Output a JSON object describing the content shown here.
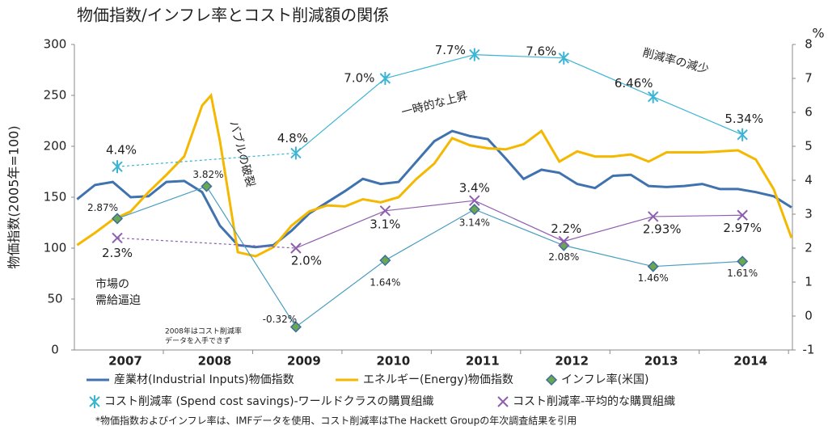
{
  "chart_data": {
    "type": "line",
    "title": "物価指数/インフレ率とコスト削減額の関係",
    "ylabel": "物価指数(2005年=100)",
    "y2label": "%",
    "xlim": [
      2006.52,
      2014.56
    ],
    "xticks": [
      2007,
      2008,
      2009,
      2010,
      2011,
      2012,
      2013,
      2014
    ],
    "ylim": [
      0,
      300
    ],
    "yticks": [
      0,
      50,
      100,
      150,
      200,
      250,
      300
    ],
    "y2lim": [
      -1,
      8
    ],
    "y2ticks": [
      -1,
      0,
      1,
      2,
      3,
      4,
      5,
      6,
      7,
      8
    ],
    "series": [
      {
        "name": "産業材(Industrial Inputs)物価指数",
        "color": "#3f72af",
        "marker": "none",
        "x": [
          2006.55,
          2006.75,
          2006.95,
          2007.15,
          2007.35,
          2007.55,
          2007.75,
          2007.95,
          2008.15,
          2008.35,
          2008.55,
          2008.75,
          2008.95,
          2009.15,
          2009.35,
          2009.55,
          2009.75,
          2009.95,
          2010.15,
          2010.35,
          2010.55,
          2010.75,
          2010.95,
          2011.15,
          2011.35,
          2011.55,
          2011.75,
          2011.95,
          2012.15,
          2012.35,
          2012.55,
          2012.75,
          2012.95,
          2013.15,
          2013.35,
          2013.55,
          2013.75,
          2013.95,
          2014.15,
          2014.35,
          2014.55
        ],
        "values": [
          148,
          162,
          165,
          150,
          151,
          165,
          166,
          155,
          122,
          103,
          101,
          103,
          117,
          134,
          145,
          156,
          168,
          163,
          165,
          185,
          205,
          215,
          210,
          207,
          188,
          168,
          177,
          174,
          163,
          159,
          171,
          172,
          161,
          160,
          161,
          163,
          158,
          158,
          155,
          151,
          140
        ]
      },
      {
        "name": "エネルギー(Energy)物価指数",
        "color": "#f5b800",
        "marker": "none",
        "x": [
          2006.55,
          2006.75,
          2006.95,
          2007.15,
          2007.35,
          2007.55,
          2007.75,
          2007.95,
          2008.05,
          2008.15,
          2008.35,
          2008.55,
          2008.75,
          2008.95,
          2009.15,
          2009.35,
          2009.55,
          2009.75,
          2009.95,
          2010.15,
          2010.35,
          2010.55,
          2010.75,
          2010.95,
          2011.15,
          2011.35,
          2011.55,
          2011.75,
          2011.95,
          2012.15,
          2012.35,
          2012.55,
          2012.75,
          2012.95,
          2013.15,
          2013.35,
          2013.55,
          2013.75,
          2013.95,
          2014.15,
          2014.35,
          2014.55
        ],
        "values": [
          103,
          115,
          128,
          136,
          155,
          172,
          190,
          240,
          250,
          205,
          96,
          92,
          101,
          122,
          136,
          142,
          141,
          148,
          145,
          150,
          168,
          183,
          208,
          201,
          198,
          197,
          202,
          215,
          185,
          195,
          190,
          190,
          192,
          185,
          194,
          194,
          194,
          195,
          196,
          187,
          158,
          110
        ]
      },
      {
        "name": "インフレ率(米国)",
        "color": "#4a9ebf",
        "marker": "diamond",
        "axis": "y2",
        "x": [
          2007,
          2008,
          2009,
          2010,
          2011,
          2012,
          2013,
          2014
        ],
        "values": [
          2.87,
          3.82,
          -0.32,
          1.64,
          3.14,
          2.08,
          1.46,
          1.61
        ],
        "value_labels": [
          "2.87%",
          "3.82%",
          "-0.32%",
          "1.64%",
          "3.14%",
          "2.08%",
          "1.46%",
          "1.61%"
        ]
      },
      {
        "name": "コスト削減率 (Spend cost savings)-ワールドクラスの購買組織",
        "color": "#3cb4d4",
        "marker": "asterisk",
        "axis": "y2",
        "x": [
          2007,
          2008,
          2009,
          2010,
          2011,
          2012,
          2013,
          2014
        ],
        "values": [
          4.4,
          null,
          4.8,
          7.0,
          7.7,
          7.6,
          6.46,
          5.34
        ],
        "value_labels": [
          "4.4%",
          null,
          "4.8%",
          "7.0%",
          "7.7%",
          "7.6%",
          "6.46%",
          "5.34%"
        ]
      },
      {
        "name": "コスト削減率-平均的な購買組織",
        "color": "#8e5fae",
        "marker": "x",
        "axis": "y2",
        "x": [
          2007,
          2008,
          2009,
          2010,
          2011,
          2012,
          2013,
          2014
        ],
        "values": [
          2.3,
          null,
          2.0,
          3.1,
          3.4,
          2.2,
          2.93,
          2.97
        ],
        "value_labels": [
          "2.3%",
          null,
          "2.0%",
          "3.1%",
          "3.4%",
          "2.2%",
          "2.93%",
          "2.97%"
        ]
      }
    ],
    "annotations": [
      "バブルの破裂",
      "一時的な上昇",
      "削減率の減少",
      "市場の",
      "需給逼迫",
      "2008年はコスト削減率",
      "データを入手できず"
    ],
    "footnote": "*物価指数およびインフレ率は、IMFデータを使用、コスト削減率はThe Hackett Groupの年次調査結果を引用"
  }
}
